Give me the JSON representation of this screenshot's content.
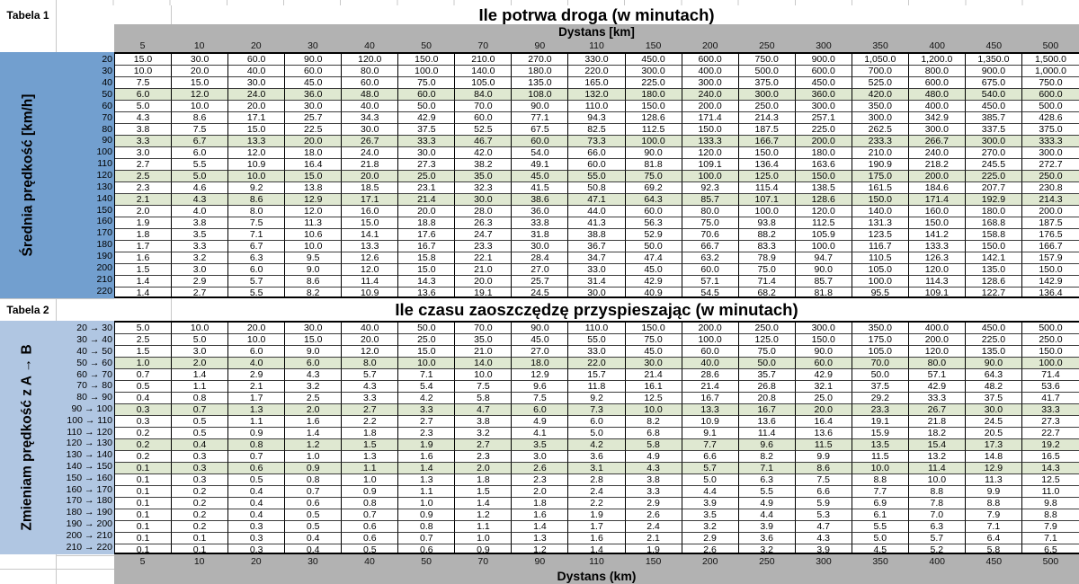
{
  "colors": {
    "header-gray": "#b2b2b2",
    "sidebar-blue": "#729fcf",
    "sidebar-lightblue": "#b0c6e2",
    "highlight-green": "#dfe8d1",
    "row-line": "#3c3c3c",
    "gridline": "#c8c8c8"
  },
  "table1": {
    "corner_label": "Tabela 1",
    "title": "Ile potrwa droga (w minutach)",
    "distance_header": "Dystans [km]",
    "sidebar_label": "Średnia prędkość [km/h]",
    "distances": [
      "5",
      "10",
      "20",
      "30",
      "40",
      "50",
      "70",
      "90",
      "110",
      "150",
      "200",
      "250",
      "300",
      "350",
      "400",
      "450",
      "500"
    ],
    "rows": [
      {
        "speed": "20",
        "highlight": false,
        "values": [
          "15.0",
          "30.0",
          "60.0",
          "90.0",
          "120.0",
          "150.0",
          "210.0",
          "270.0",
          "330.0",
          "450.0",
          "600.0",
          "750.0",
          "900.0",
          "1,050.0",
          "1,200.0",
          "1,350.0",
          "1,500.0"
        ]
      },
      {
        "speed": "30",
        "highlight": false,
        "values": [
          "10.0",
          "20.0",
          "40.0",
          "60.0",
          "80.0",
          "100.0",
          "140.0",
          "180.0",
          "220.0",
          "300.0",
          "400.0",
          "500.0",
          "600.0",
          "700.0",
          "800.0",
          "900.0",
          "1,000.0"
        ]
      },
      {
        "speed": "40",
        "highlight": false,
        "values": [
          "7.5",
          "15.0",
          "30.0",
          "45.0",
          "60.0",
          "75.0",
          "105.0",
          "135.0",
          "165.0",
          "225.0",
          "300.0",
          "375.0",
          "450.0",
          "525.0",
          "600.0",
          "675.0",
          "750.0"
        ]
      },
      {
        "speed": "50",
        "highlight": true,
        "values": [
          "6.0",
          "12.0",
          "24.0",
          "36.0",
          "48.0",
          "60.0",
          "84.0",
          "108.0",
          "132.0",
          "180.0",
          "240.0",
          "300.0",
          "360.0",
          "420.0",
          "480.0",
          "540.0",
          "600.0"
        ]
      },
      {
        "speed": "60",
        "highlight": false,
        "values": [
          "5.0",
          "10.0",
          "20.0",
          "30.0",
          "40.0",
          "50.0",
          "70.0",
          "90.0",
          "110.0",
          "150.0",
          "200.0",
          "250.0",
          "300.0",
          "350.0",
          "400.0",
          "450.0",
          "500.0"
        ]
      },
      {
        "speed": "70",
        "highlight": false,
        "values": [
          "4.3",
          "8.6",
          "17.1",
          "25.7",
          "34.3",
          "42.9",
          "60.0",
          "77.1",
          "94.3",
          "128.6",
          "171.4",
          "214.3",
          "257.1",
          "300.0",
          "342.9",
          "385.7",
          "428.6"
        ]
      },
      {
        "speed": "80",
        "highlight": false,
        "values": [
          "3.8",
          "7.5",
          "15.0",
          "22.5",
          "30.0",
          "37.5",
          "52.5",
          "67.5",
          "82.5",
          "112.5",
          "150.0",
          "187.5",
          "225.0",
          "262.5",
          "300.0",
          "337.5",
          "375.0"
        ]
      },
      {
        "speed": "90",
        "highlight": true,
        "values": [
          "3.3",
          "6.7",
          "13.3",
          "20.0",
          "26.7",
          "33.3",
          "46.7",
          "60.0",
          "73.3",
          "100.0",
          "133.3",
          "166.7",
          "200.0",
          "233.3",
          "266.7",
          "300.0",
          "333.3"
        ]
      },
      {
        "speed": "100",
        "highlight": false,
        "values": [
          "3.0",
          "6.0",
          "12.0",
          "18.0",
          "24.0",
          "30.0",
          "42.0",
          "54.0",
          "66.0",
          "90.0",
          "120.0",
          "150.0",
          "180.0",
          "210.0",
          "240.0",
          "270.0",
          "300.0"
        ]
      },
      {
        "speed": "110",
        "highlight": false,
        "values": [
          "2.7",
          "5.5",
          "10.9",
          "16.4",
          "21.8",
          "27.3",
          "38.2",
          "49.1",
          "60.0",
          "81.8",
          "109.1",
          "136.4",
          "163.6",
          "190.9",
          "218.2",
          "245.5",
          "272.7"
        ]
      },
      {
        "speed": "120",
        "highlight": true,
        "values": [
          "2.5",
          "5.0",
          "10.0",
          "15.0",
          "20.0",
          "25.0",
          "35.0",
          "45.0",
          "55.0",
          "75.0",
          "100.0",
          "125.0",
          "150.0",
          "175.0",
          "200.0",
          "225.0",
          "250.0"
        ]
      },
      {
        "speed": "130",
        "highlight": false,
        "values": [
          "2.3",
          "4.6",
          "9.2",
          "13.8",
          "18.5",
          "23.1",
          "32.3",
          "41.5",
          "50.8",
          "69.2",
          "92.3",
          "115.4",
          "138.5",
          "161.5",
          "184.6",
          "207.7",
          "230.8"
        ]
      },
      {
        "speed": "140",
        "highlight": true,
        "values": [
          "2.1",
          "4.3",
          "8.6",
          "12.9",
          "17.1",
          "21.4",
          "30.0",
          "38.6",
          "47.1",
          "64.3",
          "85.7",
          "107.1",
          "128.6",
          "150.0",
          "171.4",
          "192.9",
          "214.3"
        ]
      },
      {
        "speed": "150",
        "highlight": false,
        "values": [
          "2.0",
          "4.0",
          "8.0",
          "12.0",
          "16.0",
          "20.0",
          "28.0",
          "36.0",
          "44.0",
          "60.0",
          "80.0",
          "100.0",
          "120.0",
          "140.0",
          "160.0",
          "180.0",
          "200.0"
        ]
      },
      {
        "speed": "160",
        "highlight": false,
        "values": [
          "1.9",
          "3.8",
          "7.5",
          "11.3",
          "15.0",
          "18.8",
          "26.3",
          "33.8",
          "41.3",
          "56.3",
          "75.0",
          "93.8",
          "112.5",
          "131.3",
          "150.0",
          "168.8",
          "187.5"
        ]
      },
      {
        "speed": "170",
        "highlight": false,
        "values": [
          "1.8",
          "3.5",
          "7.1",
          "10.6",
          "14.1",
          "17.6",
          "24.7",
          "31.8",
          "38.8",
          "52.9",
          "70.6",
          "88.2",
          "105.9",
          "123.5",
          "141.2",
          "158.8",
          "176.5"
        ]
      },
      {
        "speed": "180",
        "highlight": false,
        "values": [
          "1.7",
          "3.3",
          "6.7",
          "10.0",
          "13.3",
          "16.7",
          "23.3",
          "30.0",
          "36.7",
          "50.0",
          "66.7",
          "83.3",
          "100.0",
          "116.7",
          "133.3",
          "150.0",
          "166.7"
        ]
      },
      {
        "speed": "190",
        "highlight": false,
        "values": [
          "1.6",
          "3.2",
          "6.3",
          "9.5",
          "12.6",
          "15.8",
          "22.1",
          "28.4",
          "34.7",
          "47.4",
          "63.2",
          "78.9",
          "94.7",
          "110.5",
          "126.3",
          "142.1",
          "157.9"
        ]
      },
      {
        "speed": "200",
        "highlight": false,
        "values": [
          "1.5",
          "3.0",
          "6.0",
          "9.0",
          "12.0",
          "15.0",
          "21.0",
          "27.0",
          "33.0",
          "45.0",
          "60.0",
          "75.0",
          "90.0",
          "105.0",
          "120.0",
          "135.0",
          "150.0"
        ]
      },
      {
        "speed": "210",
        "highlight": false,
        "values": [
          "1.4",
          "2.9",
          "5.7",
          "8.6",
          "11.4",
          "14.3",
          "20.0",
          "25.7",
          "31.4",
          "42.9",
          "57.1",
          "71.4",
          "85.7",
          "100.0",
          "114.3",
          "128.6",
          "142.9"
        ]
      },
      {
        "speed": "220",
        "highlight": false,
        "values": [
          "1.4",
          "2.7",
          "5.5",
          "8.2",
          "10.9",
          "13.6",
          "19.1",
          "24.5",
          "30.0",
          "40.9",
          "54.5",
          "68.2",
          "81.8",
          "95.5",
          "109.1",
          "122.7",
          "136.4"
        ]
      }
    ]
  },
  "table2": {
    "corner_label": "Tabela 2",
    "title": "Ile czasu zaoszczędzę przyspieszając (w minutach)",
    "sidebar_label": "Zmieniam prędkość z A → B",
    "footer_label": "Dystans (km)",
    "footer_distances": [
      "5",
      "10",
      "20",
      "30",
      "40",
      "50",
      "70",
      "90",
      "110",
      "150",
      "200",
      "250",
      "300",
      "350",
      "400",
      "450",
      "500"
    ],
    "rows": [
      {
        "change": "20 → 30",
        "highlight": false,
        "values": [
          "5.0",
          "10.0",
          "20.0",
          "30.0",
          "40.0",
          "50.0",
          "70.0",
          "90.0",
          "110.0",
          "150.0",
          "200.0",
          "250.0",
          "300.0",
          "350.0",
          "400.0",
          "450.0",
          "500.0"
        ]
      },
      {
        "change": "30 → 40",
        "highlight": false,
        "values": [
          "2.5",
          "5.0",
          "10.0",
          "15.0",
          "20.0",
          "25.0",
          "35.0",
          "45.0",
          "55.0",
          "75.0",
          "100.0",
          "125.0",
          "150.0",
          "175.0",
          "200.0",
          "225.0",
          "250.0"
        ]
      },
      {
        "change": "40 → 50",
        "highlight": false,
        "values": [
          "1.5",
          "3.0",
          "6.0",
          "9.0",
          "12.0",
          "15.0",
          "21.0",
          "27.0",
          "33.0",
          "45.0",
          "60.0",
          "75.0",
          "90.0",
          "105.0",
          "120.0",
          "135.0",
          "150.0"
        ]
      },
      {
        "change": "50 → 60",
        "highlight": true,
        "values": [
          "1.0",
          "2.0",
          "4.0",
          "6.0",
          "8.0",
          "10.0",
          "14.0",
          "18.0",
          "22.0",
          "30.0",
          "40.0",
          "50.0",
          "60.0",
          "70.0",
          "80.0",
          "90.0",
          "100.0"
        ]
      },
      {
        "change": "60 → 70",
        "highlight": false,
        "values": [
          "0.7",
          "1.4",
          "2.9",
          "4.3",
          "5.7",
          "7.1",
          "10.0",
          "12.9",
          "15.7",
          "21.4",
          "28.6",
          "35.7",
          "42.9",
          "50.0",
          "57.1",
          "64.3",
          "71.4"
        ]
      },
      {
        "change": "70 → 80",
        "highlight": false,
        "values": [
          "0.5",
          "1.1",
          "2.1",
          "3.2",
          "4.3",
          "5.4",
          "7.5",
          "9.6",
          "11.8",
          "16.1",
          "21.4",
          "26.8",
          "32.1",
          "37.5",
          "42.9",
          "48.2",
          "53.6"
        ]
      },
      {
        "change": "80 → 90",
        "highlight": false,
        "values": [
          "0.4",
          "0.8",
          "1.7",
          "2.5",
          "3.3",
          "4.2",
          "5.8",
          "7.5",
          "9.2",
          "12.5",
          "16.7",
          "20.8",
          "25.0",
          "29.2",
          "33.3",
          "37.5",
          "41.7"
        ]
      },
      {
        "change": "90 → 100",
        "highlight": true,
        "values": [
          "0.3",
          "0.7",
          "1.3",
          "2.0",
          "2.7",
          "3.3",
          "4.7",
          "6.0",
          "7.3",
          "10.0",
          "13.3",
          "16.7",
          "20.0",
          "23.3",
          "26.7",
          "30.0",
          "33.3"
        ]
      },
      {
        "change": "100 → 110",
        "highlight": false,
        "values": [
          "0.3",
          "0.5",
          "1.1",
          "1.6",
          "2.2",
          "2.7",
          "3.8",
          "4.9",
          "6.0",
          "8.2",
          "10.9",
          "13.6",
          "16.4",
          "19.1",
          "21.8",
          "24.5",
          "27.3"
        ]
      },
      {
        "change": "110 → 120",
        "highlight": false,
        "values": [
          "0.2",
          "0.5",
          "0.9",
          "1.4",
          "1.8",
          "2.3",
          "3.2",
          "4.1",
          "5.0",
          "6.8",
          "9.1",
          "11.4",
          "13.6",
          "15.9",
          "18.2",
          "20.5",
          "22.7"
        ]
      },
      {
        "change": "120 → 130",
        "highlight": true,
        "values": [
          "0.2",
          "0.4",
          "0.8",
          "1.2",
          "1.5",
          "1.9",
          "2.7",
          "3.5",
          "4.2",
          "5.8",
          "7.7",
          "9.6",
          "11.5",
          "13.5",
          "15.4",
          "17.3",
          "19.2"
        ]
      },
      {
        "change": "130 → 140",
        "highlight": false,
        "values": [
          "0.2",
          "0.3",
          "0.7",
          "1.0",
          "1.3",
          "1.6",
          "2.3",
          "3.0",
          "3.6",
          "4.9",
          "6.6",
          "8.2",
          "9.9",
          "11.5",
          "13.2",
          "14.8",
          "16.5"
        ]
      },
      {
        "change": "140 → 150",
        "highlight": true,
        "values": [
          "0.1",
          "0.3",
          "0.6",
          "0.9",
          "1.1",
          "1.4",
          "2.0",
          "2.6",
          "3.1",
          "4.3",
          "5.7",
          "7.1",
          "8.6",
          "10.0",
          "11.4",
          "12.9",
          "14.3"
        ]
      },
      {
        "change": "150 → 160",
        "highlight": false,
        "values": [
          "0.1",
          "0.3",
          "0.5",
          "0.8",
          "1.0",
          "1.3",
          "1.8",
          "2.3",
          "2.8",
          "3.8",
          "5.0",
          "6.3",
          "7.5",
          "8.8",
          "10.0",
          "11.3",
          "12.5"
        ]
      },
      {
        "change": "160 → 170",
        "highlight": false,
        "values": [
          "0.1",
          "0.2",
          "0.4",
          "0.7",
          "0.9",
          "1.1",
          "1.5",
          "2.0",
          "2.4",
          "3.3",
          "4.4",
          "5.5",
          "6.6",
          "7.7",
          "8.8",
          "9.9",
          "11.0"
        ]
      },
      {
        "change": "170 → 180",
        "highlight": false,
        "values": [
          "0.1",
          "0.2",
          "0.4",
          "0.6",
          "0.8",
          "1.0",
          "1.4",
          "1.8",
          "2.2",
          "2.9",
          "3.9",
          "4.9",
          "5.9",
          "6.9",
          "7.8",
          "8.8",
          "9.8"
        ]
      },
      {
        "change": "180 → 190",
        "highlight": false,
        "values": [
          "0.1",
          "0.2",
          "0.4",
          "0.5",
          "0.7",
          "0.9",
          "1.2",
          "1.6",
          "1.9",
          "2.6",
          "3.5",
          "4.4",
          "5.3",
          "6.1",
          "7.0",
          "7.9",
          "8.8"
        ]
      },
      {
        "change": "190 → 200",
        "highlight": false,
        "values": [
          "0.1",
          "0.2",
          "0.3",
          "0.5",
          "0.6",
          "0.8",
          "1.1",
          "1.4",
          "1.7",
          "2.4",
          "3.2",
          "3.9",
          "4.7",
          "5.5",
          "6.3",
          "7.1",
          "7.9"
        ]
      },
      {
        "change": "200 → 210",
        "highlight": false,
        "values": [
          "0.1",
          "0.1",
          "0.3",
          "0.4",
          "0.6",
          "0.7",
          "1.0",
          "1.3",
          "1.6",
          "2.1",
          "2.9",
          "3.6",
          "4.3",
          "5.0",
          "5.7",
          "6.4",
          "7.1"
        ]
      },
      {
        "change": "210 → 220",
        "highlight": false,
        "values": [
          "0.1",
          "0.1",
          "0.3",
          "0.4",
          "0.5",
          "0.6",
          "0.9",
          "1.2",
          "1.4",
          "1.9",
          "2.6",
          "3.2",
          "3.9",
          "4.5",
          "5.2",
          "5.8",
          "6.5"
        ]
      }
    ]
  }
}
